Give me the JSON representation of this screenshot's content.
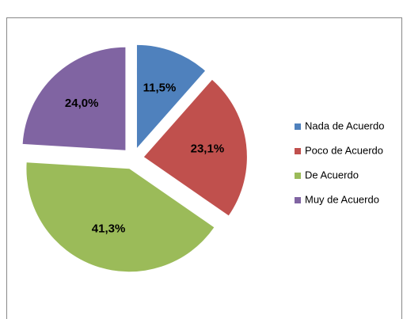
{
  "chart_data": {
    "type": "pie",
    "categories": [
      "Nada de Acuerdo",
      "Poco de Acuerdo",
      "De Acuerdo",
      "Muy de Acuerdo"
    ],
    "values": [
      11.5,
      23.1,
      41.3,
      24.0
    ],
    "value_labels": [
      "11,5%",
      "23,1%",
      "41,3%",
      "24,0%"
    ],
    "colors": [
      "#4f81bd",
      "#c0504d",
      "#9bbb59",
      "#8064a2"
    ],
    "legend": "right"
  }
}
